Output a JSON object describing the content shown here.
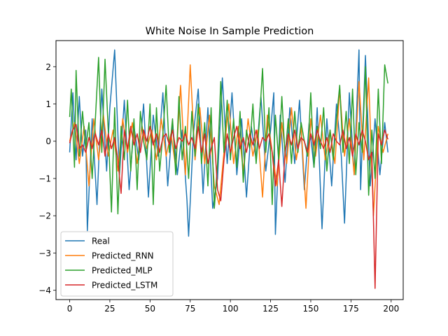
{
  "chart_data": {
    "type": "line",
    "title": "White Noise In Sample Prediction",
    "xlabel": "",
    "ylabel": "",
    "xlim": [
      -8.5,
      207.5
    ],
    "ylim": [
      -4.25,
      2.7
    ],
    "x_ticks": [
      0,
      25,
      50,
      75,
      100,
      125,
      150,
      175,
      200
    ],
    "y_ticks": [
      -4,
      -3,
      -2,
      -1,
      0,
      1,
      2
    ],
    "y_tick_labels": [
      "−4",
      "−3",
      "−2",
      "−1",
      "0",
      "1",
      "2"
    ],
    "grid": false,
    "legend": {
      "position": "lower-left"
    },
    "series": [
      {
        "name": "Real",
        "color": "#1f77b4",
        "x": [
          0,
          2,
          4,
          6,
          8,
          10,
          11,
          14,
          17,
          20,
          23,
          25,
          28,
          31,
          34,
          37,
          40,
          43,
          46,
          49,
          52,
          55,
          58,
          61,
          64,
          67,
          70,
          73,
          74,
          77,
          80,
          83,
          86,
          89,
          92,
          95,
          98,
          101,
          104,
          107,
          110,
          113,
          116,
          119,
          122,
          125,
          127,
          128,
          131,
          134,
          137,
          140,
          143,
          146,
          149,
          152,
          154,
          157,
          160,
          163,
          166,
          169,
          171,
          174,
          177,
          180,
          181,
          184,
          187,
          190,
          193,
          196,
          198
        ],
        "y": [
          -0.3,
          1.3,
          -0.5,
          1.2,
          -0.4,
          0.3,
          -2.4,
          0.6,
          -1.7,
          1.4,
          -0.8,
          0.9,
          2.45,
          -0.9,
          1.1,
          -1.3,
          0.4,
          -0.5,
          1.0,
          -1.5,
          0.7,
          -0.4,
          1.3,
          -1.2,
          0.5,
          -0.9,
          0.3,
          -1.6,
          -2.55,
          0.2,
          1.4,
          -1.4,
          0.9,
          -1.8,
          -1.0,
          1.7,
          -0.6,
          1.3,
          -0.9,
          0.6,
          -1.5,
          0.4,
          -0.5,
          1.2,
          -0.8,
          0.3,
          1.3,
          -2.5,
          0.7,
          -1.1,
          0.9,
          -0.6,
          1.1,
          -1.3,
          0.5,
          -0.7,
          0.9,
          -2.35,
          0.6,
          -1.2,
          1.0,
          -0.4,
          -2.2,
          1.3,
          -0.9,
          2.45,
          -1.3,
          2.3,
          -1.2,
          0.6,
          -0.9,
          0.5,
          -0.3
        ]
      },
      {
        "name": "Predicted_RNN",
        "color": "#ff7f0e",
        "x": [
          0,
          3,
          6,
          9,
          12,
          15,
          18,
          21,
          24,
          27,
          30,
          33,
          36,
          39,
          42,
          45,
          48,
          51,
          54,
          57,
          60,
          63,
          66,
          69,
          72,
          75,
          78,
          81,
          84,
          87,
          90,
          93,
          96,
          99,
          102,
          105,
          108,
          111,
          114,
          117,
          120,
          123,
          126,
          129,
          132,
          135,
          138,
          141,
          144,
          147,
          150,
          153,
          156,
          159,
          162,
          165,
          168,
          171,
          174,
          177,
          180,
          183,
          186,
          189,
          192,
          195,
          198
        ],
        "y": [
          0.0,
          0.5,
          -0.6,
          0.4,
          -1.2,
          0.6,
          -0.5,
          0.7,
          -0.4,
          0.3,
          -0.8,
          0.6,
          -0.3,
          0.5,
          -0.6,
          0.4,
          -0.2,
          0.3,
          -0.5,
          0.6,
          -0.4,
          0.2,
          -0.7,
          1.5,
          -0.9,
          2.05,
          -0.5,
          0.9,
          -0.6,
          0.7,
          -1.2,
          -1.7,
          -0.3,
          1.0,
          -0.6,
          0.4,
          -0.8,
          0.6,
          -0.4,
          0.3,
          -1.5,
          0.7,
          -0.3,
          -1.2,
          0.5,
          -0.6,
          0.9,
          -0.5,
          0.4,
          -1.8,
          0.6,
          -0.4,
          0.7,
          -0.5,
          0.3,
          -0.6,
          1.4,
          -0.4,
          0.6,
          -0.9,
          1.6,
          -0.5,
          1.7,
          -2.0,
          0.4,
          -0.3,
          0.2
        ]
      },
      {
        "name": "Predicted_MLP",
        "color": "#2ca02c",
        "x": [
          0,
          1,
          3,
          4,
          6,
          8,
          10,
          12,
          14,
          16,
          18,
          20,
          22,
          24,
          26,
          28,
          30,
          32,
          34,
          36,
          38,
          40,
          42,
          44,
          46,
          48,
          50,
          52,
          54,
          56,
          58,
          60,
          62,
          64,
          66,
          68,
          70,
          72,
          74,
          76,
          78,
          80,
          82,
          84,
          86,
          88,
          90,
          92,
          94,
          96,
          98,
          100,
          102,
          104,
          106,
          108,
          110,
          112,
          114,
          116,
          118,
          120,
          122,
          124,
          126,
          128,
          130,
          132,
          134,
          136,
          138,
          140,
          142,
          144,
          146,
          148,
          150,
          152,
          154,
          156,
          158,
          160,
          162,
          164,
          166,
          168,
          170,
          172,
          174,
          176,
          178,
          180,
          182,
          184,
          186,
          188,
          190,
          192,
          194,
          196,
          198
        ],
        "y": [
          0.65,
          1.4,
          -0.7,
          1.9,
          -0.4,
          0.8,
          -0.2,
          0.5,
          -1.0,
          0.6,
          2.25,
          -0.3,
          2.2,
          0.3,
          -1.9,
          0.9,
          -1.95,
          0.4,
          -0.5,
          1.1,
          -0.8,
          0.6,
          -1.3,
          0.8,
          0.0,
          -0.5,
          1.0,
          -1.7,
          0.9,
          -0.8,
          0.2,
          1.5,
          -0.3,
          0.6,
          -0.9,
          1.2,
          -0.5,
          0.4,
          -1.0,
          0.8,
          -0.4,
          1.0,
          -0.6,
          0.5,
          -1.2,
          0.9,
          -1.8,
          -0.6,
          1.6,
          -0.3,
          1.1,
          -0.5,
          0.6,
          -0.7,
          0.8,
          -1.1,
          0.3,
          -0.2,
          1.0,
          -0.6,
          0.5,
          1.95,
          -0.3,
          0.9,
          -1.7,
          0.7,
          -0.5,
          1.2,
          -0.4,
          0.6,
          -0.6,
          0.8,
          -0.3,
          0.5,
          0.0,
          -0.4,
          1.3,
          -0.7,
          0.4,
          -0.2,
          0.9,
          -0.8,
          0.3,
          -0.5,
          0.6,
          1.5,
          -0.3,
          0.8,
          -0.6,
          1.4,
          -0.9,
          0.5,
          -0.3,
          2.0,
          -1.45,
          0.3,
          -1.0,
          1.4,
          -0.6,
          2.05,
          1.55
        ]
      },
      {
        "name": "Predicted_LSTM",
        "color": "#d62728",
        "x": [
          0,
          2,
          4,
          6,
          8,
          10,
          12,
          14,
          16,
          18,
          20,
          22,
          24,
          26,
          28,
          30,
          32,
          34,
          36,
          38,
          40,
          42,
          44,
          46,
          48,
          50,
          52,
          54,
          56,
          58,
          60,
          62,
          64,
          66,
          68,
          70,
          72,
          74,
          76,
          78,
          80,
          82,
          84,
          86,
          88,
          90,
          92,
          94,
          96,
          98,
          100,
          102,
          104,
          106,
          108,
          110,
          112,
          114,
          116,
          118,
          120,
          122,
          124,
          126,
          128,
          130,
          132,
          134,
          136,
          138,
          140,
          142,
          144,
          146,
          148,
          150,
          152,
          154,
          156,
          158,
          160,
          162,
          164,
          166,
          168,
          170,
          172,
          174,
          176,
          178,
          180,
          182,
          184,
          186,
          188,
          190,
          192,
          194,
          196,
          198
        ],
        "y": [
          -0.05,
          0.3,
          0.45,
          -0.2,
          -0.1,
          -0.3,
          0.1,
          -0.2,
          0.2,
          -0.1,
          0.3,
          -0.4,
          0.2,
          -0.2,
          0.1,
          -0.5,
          -1.4,
          0.3,
          -0.2,
          0.4,
          -0.1,
          0.2,
          -0.3,
          0.3,
          0.0,
          0.4,
          -0.1,
          0.2,
          -0.3,
          0.1,
          0.2,
          -0.1,
          0.3,
          -0.2,
          0.1,
          0.0,
          0.2,
          -0.1,
          0.1,
          -0.2,
          0.4,
          -0.3,
          0.2,
          -0.6,
          -0.2,
          0.1,
          -1.3,
          -1.6,
          -0.5,
          0.2,
          -0.3,
          0.1,
          0.4,
          -0.2,
          0.1,
          -0.3,
          0.2,
          -0.1,
          0.3,
          -0.2,
          0.1,
          0.0,
          0.2,
          -0.3,
          -1.2,
          -0.5,
          -1.75,
          -0.3,
          0.2,
          -0.1,
          0.3,
          -0.2,
          0.1,
          0.0,
          -0.3,
          0.2,
          -0.1,
          0.3,
          0.0,
          -0.2,
          0.1,
          -0.3,
          0.2,
          0.0,
          -0.1,
          0.3,
          -0.2,
          0.1,
          -0.4,
          0.2,
          -0.1,
          0.3,
          0.0,
          -0.5,
          -0.3,
          -3.95,
          0.2,
          -0.1,
          0.3,
          0.05
        ]
      }
    ]
  }
}
